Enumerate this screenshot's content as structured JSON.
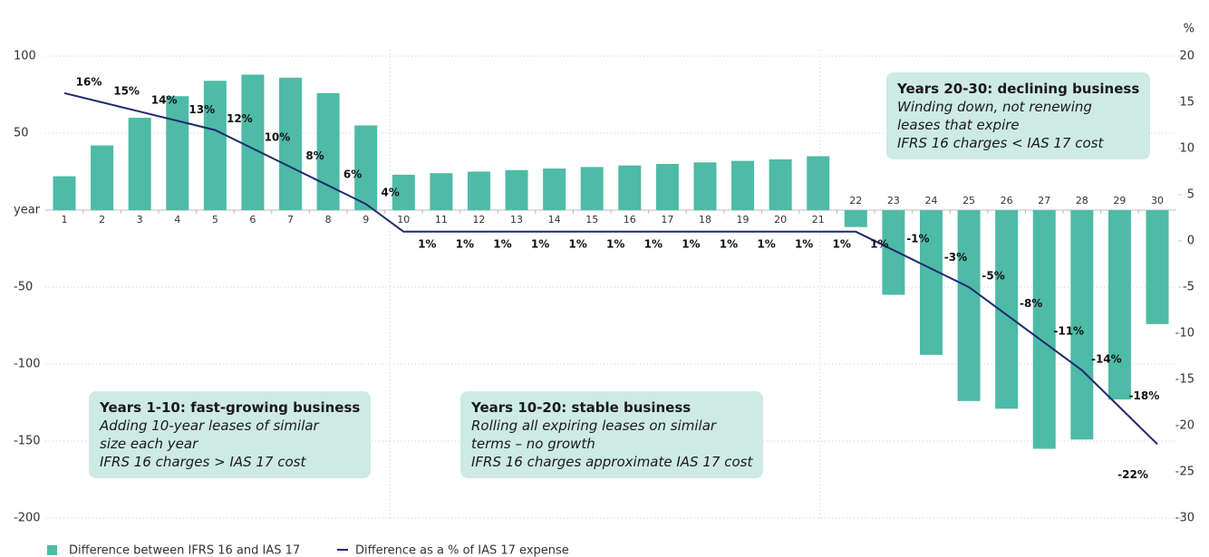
{
  "chart_data": {
    "type": "bar+line",
    "categories": [
      "1",
      "2",
      "3",
      "4",
      "5",
      "6",
      "7",
      "8",
      "9",
      "10",
      "11",
      "12",
      "13",
      "14",
      "15",
      "16",
      "17",
      "18",
      "19",
      "20",
      "21",
      "22",
      "23",
      "24",
      "25",
      "26",
      "27",
      "28",
      "29",
      "30"
    ],
    "series": [
      {
        "name": "Difference between IFRS 16 and IAS 17",
        "type": "bar",
        "color": "#4dbba6",
        "values": [
          22,
          42,
          60,
          74,
          84,
          88,
          86,
          76,
          55,
          23,
          24,
          25,
          26,
          27,
          28,
          29,
          30,
          31,
          32,
          33,
          35,
          -11,
          -55,
          -94,
          -124,
          -129,
          -155,
          -149,
          -123,
          -74
        ]
      },
      {
        "name": "Difference as a % of IAS 17 expense",
        "type": "line",
        "axis": "y2",
        "color": "#1f2a6e",
        "values": [
          16,
          15,
          14,
          13,
          12,
          10,
          8,
          6,
          4,
          1,
          1,
          1,
          1,
          1,
          1,
          1,
          1,
          1,
          1,
          1,
          1,
          1,
          -1,
          -3,
          -5,
          -8,
          -11,
          -14,
          -18,
          -22
        ],
        "value_labels": [
          "16%",
          "15%",
          "14%",
          "13%",
          "12%",
          "10%",
          "8%",
          "6%",
          "4%",
          "1%",
          "1%",
          "1%",
          "1%",
          "1%",
          "1%",
          "1%",
          "1%",
          "1%",
          "1%",
          "1%",
          "1%",
          "1%",
          "-1%",
          "-3%",
          "-5%",
          "-8%",
          "-11%",
          "-14%",
          "-18%",
          "-22%"
        ]
      }
    ],
    "y2_label": "%",
    "ylim": [
      -200,
      100
    ],
    "yticks": [
      100,
      50,
      {
        "value": 0,
        "label": "year"
      },
      -50,
      -100,
      -150,
      -200
    ],
    "y2lim": [
      -30,
      20
    ],
    "y2ticks": [
      20,
      15,
      10,
      5,
      0,
      -5,
      -10,
      -15,
      -20,
      -25,
      -30
    ],
    "grid": true,
    "annotations": [
      {
        "title": "Years 1-10: fast-growing business",
        "lines": [
          "Adding 10-year leases of similar",
          "size each year",
          "IFRS 16 charges > IAS 17 cost"
        ]
      },
      {
        "title": "Years 10-20: stable business",
        "lines": [
          "Rolling all expiring leases on similar",
          "terms – no growth",
          "IFRS 16 charges approximate IAS 17 cost"
        ]
      },
      {
        "title": "Years 20-30: declining business",
        "lines": [
          "Winding down, not renewing",
          "leases that expire",
          "IFRS 16 charges < IAS 17 cost"
        ]
      }
    ]
  }
}
